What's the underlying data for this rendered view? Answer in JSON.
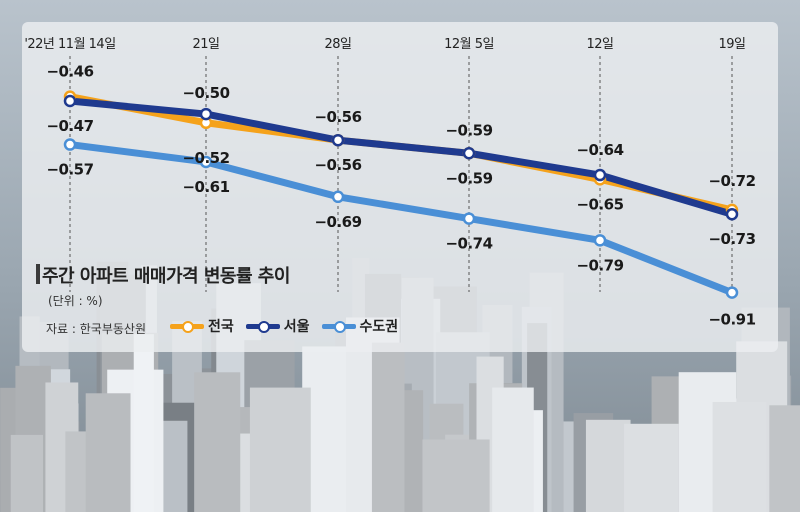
{
  "chart_data": {
    "type": "line",
    "title": "주간 아파트 매매가격 변동률 추이",
    "unit": "(단위 : %)",
    "source": "자료 : 한국부동산원",
    "categories": [
      "'22년 11월 14일",
      "21일",
      "28일",
      "12월 5일",
      "12일",
      "19일"
    ],
    "series": [
      {
        "name": "전국",
        "color": "#f5a21b",
        "values": [
          -0.46,
          -0.52,
          -0.56,
          -0.59,
          -0.65,
          -0.72
        ]
      },
      {
        "name": "서울",
        "color": "#1f3a8f",
        "values": [
          -0.47,
          -0.5,
          -0.56,
          -0.59,
          -0.64,
          -0.73
        ]
      },
      {
        "name": "수도권",
        "color": "#4a8fd6",
        "values": [
          -0.57,
          -0.61,
          -0.69,
          -0.74,
          -0.79,
          -0.91
        ]
      }
    ],
    "labels": [
      [
        "-0.46",
        "-0.52",
        "-0.56",
        "-0.59",
        "-0.65",
        "-0.72"
      ],
      [
        "-0.47",
        "-0.50",
        "-0.56",
        "-0.59",
        "-0.64",
        "-0.73"
      ],
      [
        "-0.57",
        "-0.61",
        "-0.69",
        "-0.74",
        "-0.79",
        "-0.91"
      ]
    ]
  }
}
